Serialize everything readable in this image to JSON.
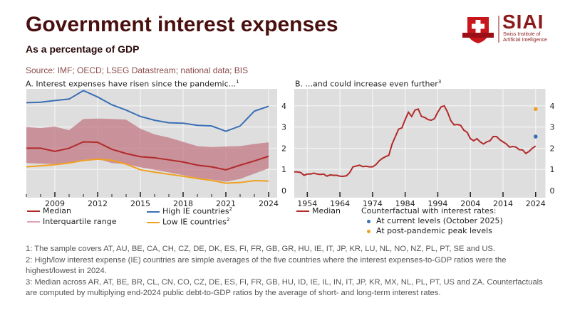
{
  "header": {
    "title": "Government interest expenses",
    "subtitle": "As a percentage of GDP",
    "source": "Source:  IMF; OECD; LSEG Datastream; national data; BIS"
  },
  "logo": {
    "name": "SIAI",
    "line1": "Swiss Institute of",
    "line2": "Artificial Intelligence",
    "color": "#8b1a1a"
  },
  "colors": {
    "median": "#b22a2a",
    "iqr": "#c0707e",
    "high": "#3a6fb5",
    "low": "#f0a020",
    "plot_bg": "#dedede",
    "counterfactual_current": "#3a6fb5",
    "counterfactual_peak": "#f0a020"
  },
  "chart_data": [
    {
      "type": "line",
      "panel": "A",
      "title": "A. Interest expenses have risen since the pandemic...",
      "title_footnote": "1",
      "xlabel": "",
      "ylabel": "",
      "xlim": [
        2007,
        2024.3
      ],
      "ylim": [
        0,
        4.8
      ],
      "x_ticks": [
        2009,
        2012,
        2015,
        2018,
        2021,
        2024
      ],
      "y_ticks": [
        0,
        1,
        2,
        3,
        4
      ],
      "grid": true,
      "y_axis_side": "right",
      "x": [
        2007,
        2008,
        2009,
        2010,
        2011,
        2012,
        2013,
        2014,
        2015,
        2016,
        2017,
        2018,
        2019,
        2020,
        2021,
        2022,
        2023,
        2024
      ],
      "series": [
        {
          "name": "Median",
          "values": [
            2.0,
            2.0,
            1.85,
            2.0,
            2.3,
            2.28,
            1.95,
            1.75,
            1.6,
            1.55,
            1.45,
            1.35,
            1.2,
            1.12,
            0.98,
            1.2,
            1.4,
            1.62
          ]
        },
        {
          "name": "High IE countries",
          "footnote": "2",
          "values": [
            4.15,
            4.17,
            4.25,
            4.32,
            4.72,
            4.42,
            4.05,
            3.8,
            3.5,
            3.32,
            3.2,
            3.18,
            3.08,
            3.05,
            2.8,
            3.05,
            3.75,
            3.98
          ]
        },
        {
          "name": "Low IE countries",
          "footnote": "2",
          "values": [
            1.12,
            1.17,
            1.22,
            1.3,
            1.42,
            1.48,
            1.43,
            1.25,
            0.98,
            0.87,
            0.77,
            0.68,
            0.57,
            0.48,
            0.35,
            0.38,
            0.47,
            0.45
          ]
        },
        {
          "name": "Interquartile range",
          "type": "band",
          "upper": [
            3.0,
            2.95,
            3.02,
            2.85,
            3.38,
            3.4,
            3.38,
            3.35,
            2.92,
            2.65,
            2.5,
            2.3,
            2.1,
            2.05,
            2.08,
            2.1,
            2.2,
            2.28
          ],
          "lower": [
            1.3,
            1.27,
            1.25,
            1.33,
            1.45,
            1.5,
            1.3,
            1.25,
            1.1,
            0.98,
            0.86,
            0.73,
            0.6,
            0.52,
            0.42,
            0.55,
            0.8,
            1.05
          ]
        }
      ],
      "legend": [
        {
          "label": "Median",
          "key": "median"
        },
        {
          "label": "High IE countries",
          "sup": "2",
          "key": "high"
        },
        {
          "label": "Interquartile range",
          "key": "iqr"
        },
        {
          "label": "Low IE countries",
          "sup": "2",
          "key": "low"
        }
      ]
    },
    {
      "type": "line",
      "panel": "B",
      "title": "B. ...and could increase even further",
      "title_footnote": "3",
      "xlim": [
        1950,
        2027
      ],
      "ylim": [
        0,
        4.8
      ],
      "x_ticks": [
        1954,
        1964,
        1974,
        1984,
        1994,
        2004,
        2014,
        2024
      ],
      "y_ticks": [
        0,
        1,
        2,
        3,
        4
      ],
      "grid": true,
      "y_axis_side": "right",
      "series": [
        {
          "name": "Median",
          "x": [
            1950,
            1951,
            1952,
            1953,
            1954,
            1955,
            1956,
            1957,
            1958,
            1959,
            1960,
            1961,
            1962,
            1963,
            1964,
            1965,
            1966,
            1967,
            1968,
            1969,
            1970,
            1971,
            1972,
            1973,
            1974,
            1975,
            1976,
            1977,
            1978,
            1979,
            1980,
            1981,
            1982,
            1983,
            1984,
            1985,
            1986,
            1987,
            1988,
            1989,
            1990,
            1991,
            1992,
            1993,
            1994,
            1995,
            1996,
            1997,
            1998,
            1999,
            2000,
            2001,
            2002,
            2003,
            2004,
            2005,
            2006,
            2007,
            2008,
            2009,
            2010,
            2011,
            2012,
            2013,
            2014,
            2015,
            2016,
            2017,
            2018,
            2019,
            2020,
            2021,
            2022,
            2023,
            2024
          ],
          "values": [
            0.88,
            0.88,
            0.85,
            0.72,
            0.78,
            0.78,
            0.82,
            0.78,
            0.76,
            0.78,
            0.68,
            0.74,
            0.72,
            0.72,
            0.68,
            0.67,
            0.7,
            0.85,
            1.12,
            1.16,
            1.2,
            1.13,
            1.15,
            1.12,
            1.12,
            1.22,
            1.4,
            1.52,
            1.6,
            1.67,
            2.2,
            2.55,
            2.9,
            2.96,
            3.35,
            3.7,
            3.5,
            3.8,
            3.85,
            3.5,
            3.45,
            3.35,
            3.32,
            3.4,
            3.7,
            3.95,
            4.0,
            3.7,
            3.3,
            3.1,
            3.12,
            3.08,
            2.85,
            2.75,
            2.45,
            2.35,
            2.45,
            2.3,
            2.2,
            2.3,
            2.35,
            2.55,
            2.55,
            2.4,
            2.3,
            2.2,
            2.05,
            2.08,
            2.05,
            1.93,
            1.92,
            1.75,
            1.85,
            2.0,
            2.1
          ]
        },
        {
          "name": "At current levels (October 2025)",
          "type": "point",
          "x": [
            2024
          ],
          "values": [
            2.55
          ]
        },
        {
          "name": "At post-pandemic peak levels",
          "type": "point",
          "x": [
            2024
          ],
          "values": [
            3.85
          ]
        }
      ],
      "legend": [
        {
          "label": "Median",
          "key": "median"
        },
        {
          "label": "Counterfactual with interest rates:",
          "key": "header"
        },
        {
          "label": "At current levels (October 2025)",
          "key": "counterfactual_current"
        },
        {
          "label": "At post-pandemic peak levels",
          "key": "counterfactual_peak"
        }
      ]
    }
  ],
  "notes": [
    "1: The sample covers AT, AU, BE, CA, CH, CZ, DE, DK, ES, FI, FR, GB, GR, HU, IE, IT, JP, KR, LU, NL, NO, NZ, PL, PT, SE and US.",
    "2: High/low interest expense (IE) countries are simple averages of the five countries where the interest expenses-to-GDP ratios were the highest/lowest in 2024.",
    "3: Median across AR, AT, BE, BR, CL, CN, CO, CZ, DE, ES, FI, FR, GB, HU, ID, IE, IL, IN, IT, JP, KR, MX, NL, PL, PT, US and ZA. Counterfactuals are computed by multiplying end-2024 public debt-to-GDP ratios by the average of short- and long-term interest rates."
  ]
}
